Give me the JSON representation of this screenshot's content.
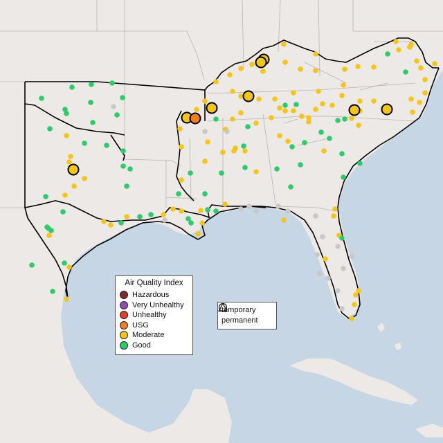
{
  "legend": {
    "title": "Air Quality Index",
    "items": [
      {
        "label": "Hazardous",
        "color": "#7e2a2a"
      },
      {
        "label": "Very Unhealthy",
        "color": "#8f4fb5"
      },
      {
        "label": "Unhealthy",
        "color": "#e03b2b"
      },
      {
        "label": "USG",
        "color": "#ef7f1f"
      },
      {
        "label": "Moderate",
        "color": "#f4c51b"
      },
      {
        "label": "Good",
        "color": "#2ecb6d"
      }
    ]
  },
  "type_legend": {
    "temporary": "temporary",
    "permanent": "permanent"
  },
  "colors": {
    "land": "#ede9e6",
    "water": "#c6d6e4",
    "no_data": "#c8c8c8",
    "highlight_border": "#000000"
  }
}
